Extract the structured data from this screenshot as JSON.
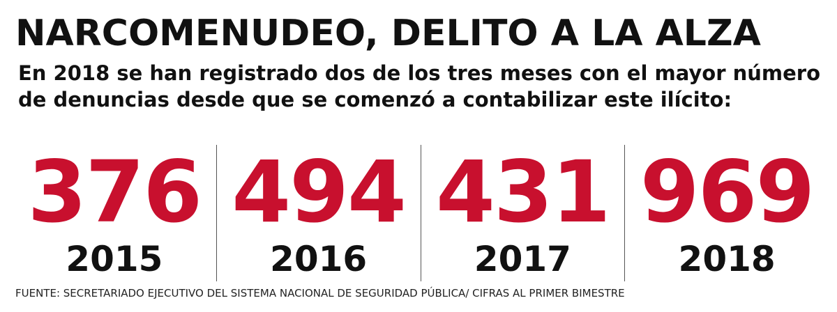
{
  "header": {
    "title": "NARCOMENUDEO, DELITO A LA ALZA",
    "subtitle": "En 2018 se han registrado dos de los tres meses con el mayor número de denuncias desde que se comenzó a contabilizar este ilícito:"
  },
  "stats": [
    {
      "value": "376",
      "year": "2015"
    },
    {
      "value": "494",
      "year": "2016"
    },
    {
      "value": "431",
      "year": "2017"
    },
    {
      "value": "969",
      "year": "2018"
    }
  ],
  "source": "FUENTE: SECRETARIADO EJECUTIVO DEL SISTEMA NACIONAL DE SEGURIDAD PÚBLICA/ CIFRAS AL PRIMER BIMESTRE",
  "colors": {
    "accent": "#c8102e",
    "text": "#111111",
    "divider": "#555555",
    "background": "#ffffff"
  }
}
